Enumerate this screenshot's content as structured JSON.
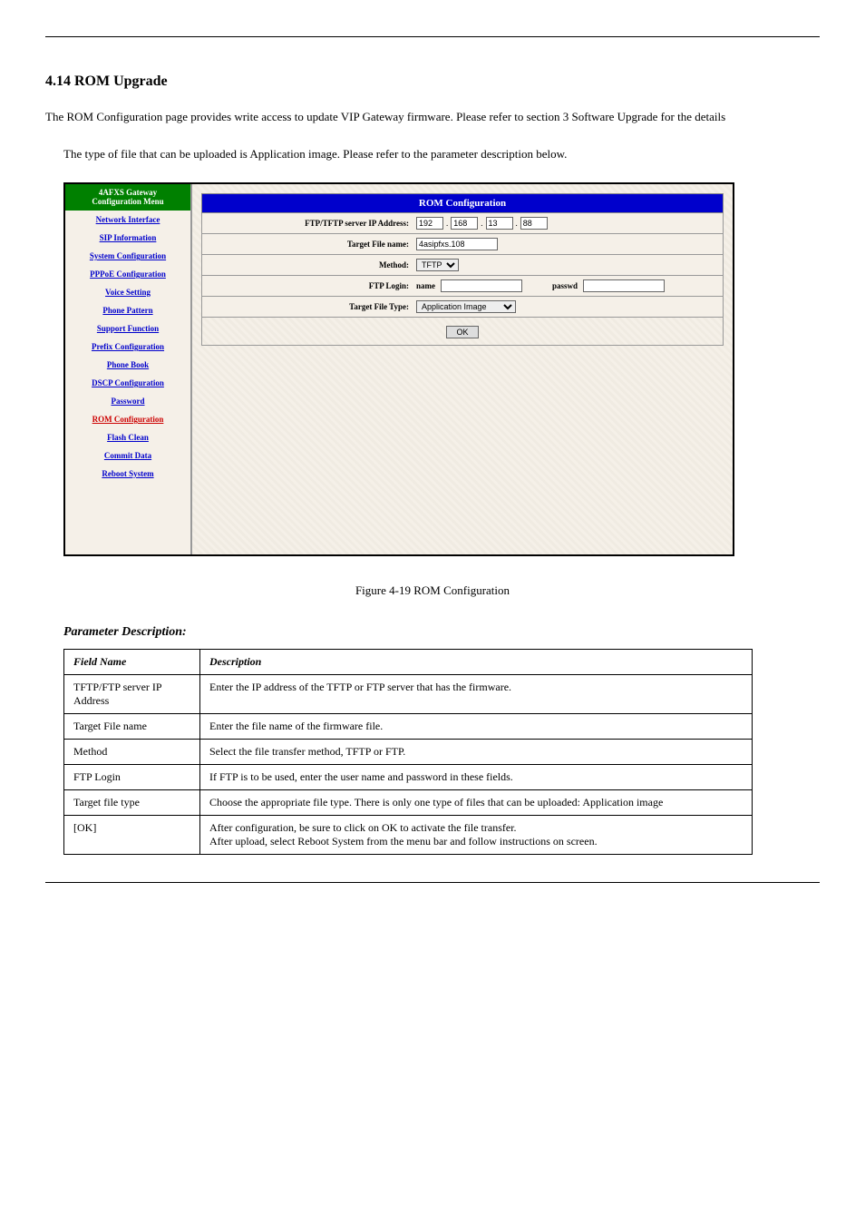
{
  "section": {
    "number": "4.14",
    "title": "ROM Upgrade"
  },
  "intro": "The ROM Configuration page provides write access to update VIP  Gateway firmware. Please refer to section 3 Software Upgrade for the details",
  "indented_note": "The type of file that can be uploaded is Application image. Please refer to the parameter description below.",
  "sidebar": {
    "title_line1": "4AFXS Gateway",
    "title_line2": "Configuration Menu",
    "items": [
      {
        "label": "Network Interface",
        "active": false
      },
      {
        "label": "SIP Information",
        "active": false
      },
      {
        "label": "System Configuration",
        "active": false
      },
      {
        "label": "PPPoE Configuration",
        "active": false
      },
      {
        "label": "Voice Setting",
        "active": false
      },
      {
        "label": "Phone Pattern",
        "active": false
      },
      {
        "label": "Support Function",
        "active": false
      },
      {
        "label": "Prefix Configuration",
        "active": false
      },
      {
        "label": "Phone Book",
        "active": false
      },
      {
        "label": "DSCP Configuration",
        "active": false
      },
      {
        "label": "Password",
        "active": false
      },
      {
        "label": "ROM Configuration",
        "active": true
      },
      {
        "label": "Flash Clean",
        "active": false
      },
      {
        "label": "Commit Data",
        "active": false
      },
      {
        "label": "Reboot System",
        "active": false
      }
    ]
  },
  "panel": {
    "title": "ROM Configuration",
    "rows": {
      "ip": {
        "label": "FTP/TFTP server IP Address:",
        "oct1": "192",
        "oct2": "168",
        "oct3": "13",
        "oct4": "88"
      },
      "filename": {
        "label": "Target File name:",
        "value": "4asipfxs.108"
      },
      "method": {
        "label": "Method:",
        "value": "TFTP"
      },
      "login": {
        "label": "FTP Login:",
        "name_label": "name",
        "name_value": "",
        "passwd_label": "passwd",
        "passwd_value": ""
      },
      "filetype": {
        "label": "Target File Type:",
        "value": "Application Image"
      }
    },
    "ok": "OK"
  },
  "figure": {
    "caption": "Figure 4-19 ROM Configuration"
  },
  "param": {
    "heading": "Parameter Description:",
    "table": {
      "headers": [
        "Field Name",
        "Description"
      ],
      "rows": [
        [
          "TFTP/FTP server IP Address",
          "Enter the IP address of the TFTP or FTP server that has the firmware."
        ],
        [
          "Target File name",
          "Enter the file name of the firmware file."
        ],
        [
          "Method",
          "Select the file transfer method, TFTP or FTP."
        ],
        [
          "FTP Login",
          "If FTP is to be used, enter the user name and password in these fields."
        ],
        [
          "Target file type",
          "Choose the appropriate file type. There is only one type of files that can be uploaded: Application image"
        ],
        [
          "[OK]",
          "After configuration, be sure to click on OK to activate the file transfer.\nAfter upload, select Reboot System from the menu bar and follow instructions on screen."
        ]
      ]
    }
  }
}
